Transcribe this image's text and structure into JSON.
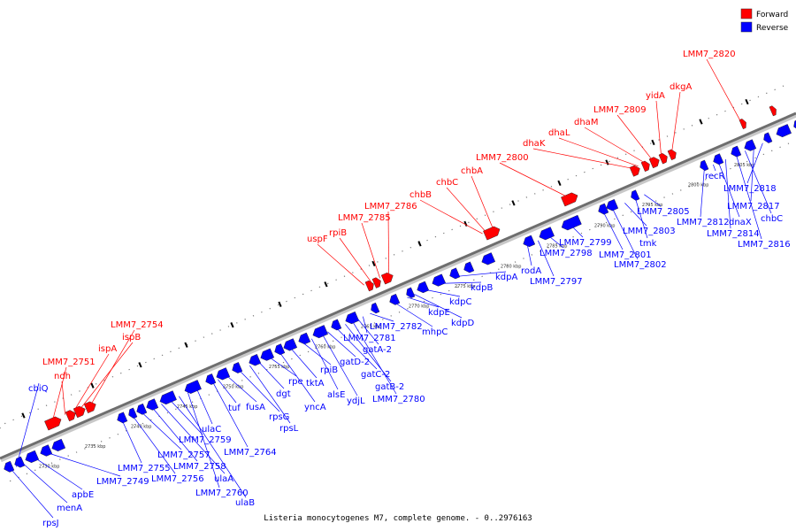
{
  "caption": "Listeria monocytogenes M7, complete genome. - 0..2976163",
  "legend": [
    {
      "name": "Forward",
      "color": "#ff0000"
    },
    {
      "name": "Reverse",
      "color": "#0000ff"
    }
  ],
  "scale_ticks": [
    "2730 kbp",
    "2735 kbp",
    "2740 kbp",
    "2745 kbp",
    "2750 kbp",
    "2755 kbp",
    "2760 kbp",
    "2765 kbp",
    "2770 kbp",
    "2775 kbp",
    "2780 kbp",
    "2785 kbp",
    "2790 kbp",
    "2795 kbp",
    "2800 kbp",
    "2805 kbp"
  ],
  "forward_labels": [
    "LMM7_2820",
    "dkgA",
    "yidA",
    "LMM7_2809",
    "dhaM",
    "dhaL",
    "dhaK",
    "LMM7_2800",
    "chbA",
    "chbC",
    "chbB",
    "LMM7_2786",
    "LMM7_2785",
    "rpiB",
    "uspF",
    "LMM7_2754",
    "ispB",
    "ispA",
    "ndh",
    "LMM7_2751"
  ],
  "reverse_labels": [
    "cbiQ",
    "rpsJ",
    "menA",
    "apbE",
    "LMM7_2749",
    "LMM7_2755",
    "LMM7_2756",
    "LMM7_2757",
    "LMM7_2758",
    "ulaA",
    "LMM7_2759",
    "ulaB",
    "LMM7_2760",
    "ulaC",
    "LMM7_2764",
    "tuf",
    "fusA",
    "rpsG",
    "rpsL",
    "dgt",
    "rpe",
    "yncA",
    "tktA",
    "rpiB",
    "alsE",
    "ydjL",
    "gatD-2",
    "gatC-2",
    "gatB-2",
    "LMM7_2780",
    "gatA-2",
    "LMM7_2781",
    "LMM7_2782",
    "mhpC",
    "kdpE",
    "kdpD",
    "kdpC",
    "kdpB",
    "kdpA",
    "rodA",
    "LMM7_2797",
    "LMM7_2798",
    "LMM7_2799",
    "LMM7_2801",
    "LMM7_2802",
    "LMM7_2803",
    "tmk",
    "LMM7_2805",
    "LMM7_2812",
    "recR",
    "dnaX",
    "LMM7_2814",
    "LMM7_2816",
    "chbC",
    "LMM7_2817",
    "LMM7_2818"
  ]
}
